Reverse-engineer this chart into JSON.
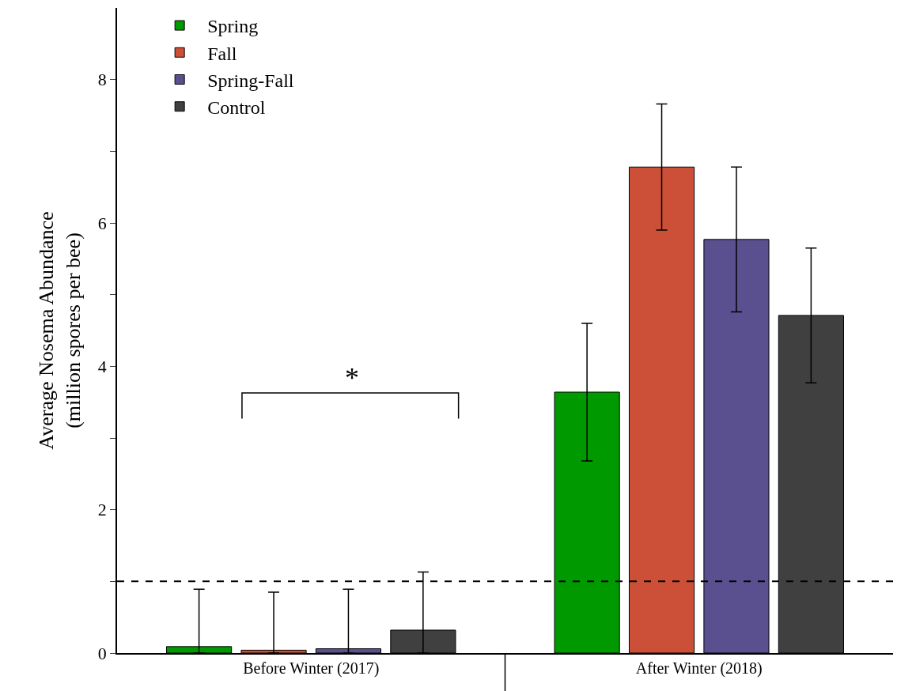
{
  "chart_data": {
    "type": "bar",
    "ylabel": "Average Nosema Abundance\n(million spores per bee)",
    "categories": [
      "Before Winter (2017)",
      "After Winter (2018)"
    ],
    "series": [
      {
        "name": "Spring",
        "color": "#009900",
        "values": [
          0.09,
          3.64
        ],
        "errors": [
          [
            0,
            0.89
          ],
          0.96
        ]
      },
      {
        "name": "Fall",
        "color": "#cc5038",
        "values": [
          0.04,
          6.78
        ],
        "errors": [
          [
            0,
            0.85
          ],
          0.88
        ]
      },
      {
        "name": "Spring-Fall",
        "color": "#5a5090",
        "values": [
          0.06,
          5.77
        ],
        "errors": [
          [
            0,
            0.89
          ],
          1.01
        ]
      },
      {
        "name": "Control",
        "color": "#404040",
        "values": [
          0.32,
          4.71
        ],
        "errors": [
          [
            0,
            1.13
          ],
          0.94
        ]
      }
    ],
    "ylim": [
      0,
      9
    ],
    "yticks": [
      0,
      {
        "value": 1,
        "label": null
      },
      2,
      {
        "value": 3,
        "label": null
      },
      4,
      {
        "value": 5,
        "label": null
      },
      6,
      {
        "value": 7,
        "label": null
      },
      8
    ],
    "ref_lines": [
      {
        "axis": "y",
        "value": 1,
        "color": "#000000",
        "line_style": "dashed"
      }
    ],
    "annotations": [
      "*"
    ],
    "legend": "top left"
  }
}
